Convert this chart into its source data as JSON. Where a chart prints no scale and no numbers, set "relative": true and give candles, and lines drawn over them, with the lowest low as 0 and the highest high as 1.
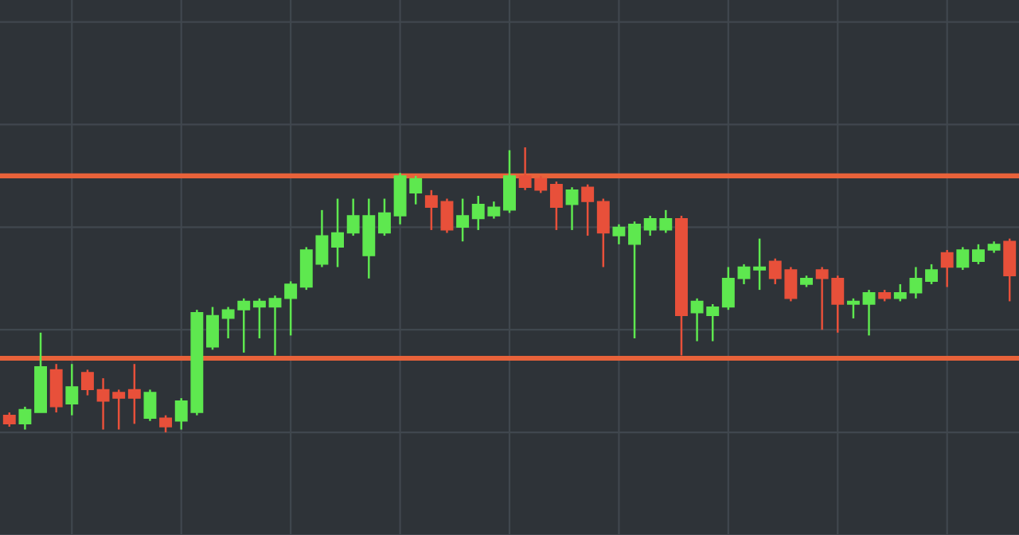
{
  "chart_data": {
    "type": "candlestick",
    "relative": true,
    "grid": true,
    "categories": [
      null,
      null,
      null,
      null,
      null,
      null,
      null,
      null,
      null,
      null,
      null,
      null,
      null,
      null,
      null,
      null,
      null,
      null,
      null,
      null,
      null,
      null,
      null,
      null,
      null,
      null,
      null,
      null,
      null,
      null,
      null,
      null,
      null,
      null,
      null,
      null,
      null,
      null,
      null,
      null,
      null,
      null,
      null,
      null,
      null,
      null,
      null,
      null,
      null,
      null,
      null,
      null,
      null,
      null,
      null,
      null,
      null,
      null,
      null,
      null,
      null,
      null,
      null,
      null,
      null
    ],
    "ohlc": [
      [
        0.06,
        0.07,
        0.02,
        0.03
      ],
      [
        0.03,
        0.09,
        0.01,
        0.08
      ],
      [
        0.07,
        0.35,
        0.07,
        0.23
      ],
      [
        0.22,
        0.24,
        0.07,
        0.09
      ],
      [
        0.1,
        0.24,
        0.06,
        0.16
      ],
      [
        0.21,
        0.22,
        0.13,
        0.15
      ],
      [
        0.15,
        0.19,
        0.01,
        0.11
      ],
      [
        0.14,
        0.15,
        0.01,
        0.12
      ],
      [
        0.15,
        0.24,
        0.03,
        0.12
      ],
      [
        0.05,
        0.15,
        0.04,
        0.14
      ],
      [
        0.05,
        0.06,
        0,
        0.02
      ],
      [
        0.04,
        0.12,
        0.01,
        0.11
      ],
      [
        0.07,
        0.43,
        0.06,
        0.42
      ],
      [
        0.3,
        0.44,
        0.29,
        0.41
      ],
      [
        0.4,
        0.44,
        0.33,
        0.43
      ],
      [
        0.43,
        0.47,
        0.28,
        0.46
      ],
      [
        0.44,
        0.47,
        0.33,
        0.46
      ],
      [
        0.44,
        0.48,
        0.27,
        0.47
      ],
      [
        0.47,
        0.53,
        0.34,
        0.52
      ],
      [
        0.51,
        0.65,
        0.5,
        0.64
      ],
      [
        0.59,
        0.78,
        0.58,
        0.69
      ],
      [
        0.65,
        0.82,
        0.58,
        0.7
      ],
      [
        0.7,
        0.82,
        0.69,
        0.76
      ],
      [
        0.62,
        0.82,
        0.54,
        0.76
      ],
      [
        0.7,
        0.82,
        0.69,
        0.77
      ],
      [
        0.76,
        0.91,
        0.73,
        0.9
      ],
      [
        0.84,
        0.9,
        0.8,
        0.89
      ],
      [
        0.83,
        0.85,
        0.71,
        0.79
      ],
      [
        0.81,
        0.82,
        0.7,
        0.71
      ],
      [
        0.72,
        0.82,
        0.67,
        0.76
      ],
      [
        0.75,
        0.83,
        0.71,
        0.8
      ],
      [
        0.76,
        0.81,
        0.75,
        0.79
      ],
      [
        0.78,
        0.99,
        0.77,
        0.9
      ],
      [
        0.9,
        1,
        0.85,
        0.86
      ],
      [
        0.89,
        0.9,
        0.84,
        0.85
      ],
      [
        0.87,
        0.88,
        0.71,
        0.79
      ],
      [
        0.8,
        0.86,
        0.71,
        0.85
      ],
      [
        0.86,
        0.87,
        0.69,
        0.81
      ],
      [
        0.81,
        0.82,
        0.58,
        0.7
      ],
      [
        0.69,
        0.73,
        0.66,
        0.72
      ],
      [
        0.66,
        0.74,
        0.33,
        0.73
      ],
      [
        0.71,
        0.76,
        0.69,
        0.75
      ],
      [
        0.71,
        0.78,
        0.7,
        0.75
      ],
      [
        0.75,
        0.76,
        0.27,
        0.41
      ],
      [
        0.42,
        0.47,
        0.32,
        0.46
      ],
      [
        0.41,
        0.45,
        0.32,
        0.44
      ],
      [
        0.44,
        0.58,
        0.43,
        0.54
      ],
      [
        0.54,
        0.59,
        0.52,
        0.58
      ],
      [
        0.57,
        0.68,
        0.5,
        0.58
      ],
      [
        0.6,
        0.61,
        0.52,
        0.54
      ],
      [
        0.57,
        0.58,
        0.46,
        0.47
      ],
      [
        0.52,
        0.55,
        0.51,
        0.54
      ],
      [
        0.57,
        0.58,
        0.36,
        0.54
      ],
      [
        0.54,
        0.55,
        0.35,
        0.45
      ],
      [
        0.45,
        0.47,
        0.4,
        0.46
      ],
      [
        0.45,
        0.5,
        0.34,
        0.49
      ],
      [
        0.49,
        0.5,
        0.46,
        0.47
      ],
      [
        0.47,
        0.52,
        0.46,
        0.49
      ],
      [
        0.49,
        0.58,
        0.47,
        0.54
      ],
      [
        0.53,
        0.59,
        0.52,
        0.57
      ],
      [
        0.63,
        0.64,
        0.51,
        0.58
      ],
      [
        0.58,
        0.65,
        0.57,
        0.64
      ],
      [
        0.6,
        0.66,
        0.59,
        0.64
      ],
      [
        0.64,
        0.67,
        0.63,
        0.66
      ],
      [
        0.67,
        0.68,
        0.46,
        0.55
      ]
    ],
    "colors": [
      "#e8503a",
      "#5ee84f",
      "#5ee84f",
      "#e8503a",
      "#5ee84f",
      "#e8503a",
      "#e8503a",
      "#e8503a",
      "#e8503a",
      "#5ee84f",
      "#e8503a",
      "#5ee84f",
      "#5ee84f",
      "#5ee84f",
      "#5ee84f",
      "#5ee84f",
      "#5ee84f",
      "#5ee84f",
      "#5ee84f",
      "#5ee84f",
      "#5ee84f",
      "#5ee84f",
      "#5ee84f",
      "#5ee84f",
      "#5ee84f",
      "#5ee84f",
      "#5ee84f",
      "#e8503a",
      "#e8503a",
      "#5ee84f",
      "#5ee84f",
      "#5ee84f",
      "#5ee84f",
      "#e8503a",
      "#e8503a",
      "#e8503a",
      "#5ee84f",
      "#e8503a",
      "#e8503a",
      "#5ee84f",
      "#5ee84f",
      "#5ee84f",
      "#5ee84f",
      "#e8503a",
      "#5ee84f",
      "#5ee84f",
      "#5ee84f",
      "#5ee84f",
      "#5ee84f",
      "#e8503a",
      "#e8503a",
      "#5ee84f",
      "#e8503a",
      "#e8503a",
      "#5ee84f",
      "#5ee84f",
      "#e8503a",
      "#5ee84f",
      "#5ee84f",
      "#5ee84f",
      "#e8503a",
      "#5ee84f",
      "#5ee84f",
      "#5ee84f",
      "#e8503a"
    ],
    "ref_lines": [
      {
        "axis": "y",
        "value": 0.9,
        "color": "#e8623a"
      },
      {
        "axis": "y",
        "value": 0.26,
        "color": "#e8623a"
      }
    ]
  }
}
